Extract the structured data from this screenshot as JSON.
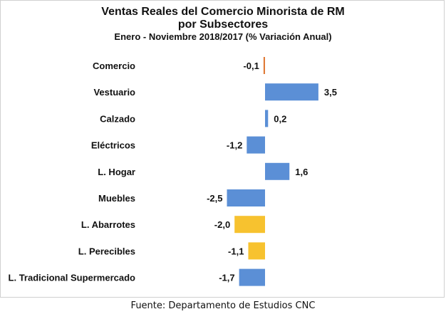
{
  "chart_data": {
    "type": "bar",
    "orientation": "horizontal",
    "title": "Ventas Reales del Comercio Minorista de RM",
    "title_line2": "por Subsectores",
    "subtitle": "Enero - Noviembre 2018/2017 (% Variación Anual)",
    "categories": [
      "Comercio",
      "Vestuario",
      "Calzado",
      "Eléctricos",
      "L. Hogar",
      "Muebles",
      "L. Abarrotes",
      "L. Perecibles",
      "L. Tradicional Supermercado"
    ],
    "values": [
      -0.1,
      3.5,
      0.2,
      -1.2,
      1.6,
      -2.5,
      -2.0,
      -1.1,
      -1.7
    ],
    "value_labels": [
      "-0,1",
      "3,5",
      "0,2",
      "-1,2",
      "1,6",
      "-2,5",
      "-2,0",
      "-1,1",
      "-1,7"
    ],
    "bar_colors": [
      "#e07b39",
      "#5b8fd6",
      "#5b8fd6",
      "#5b8fd6",
      "#5b8fd6",
      "#5b8fd6",
      "#f7c22f",
      "#f7c22f",
      "#5b8fd6"
    ],
    "xlim": [
      -2.5,
      3.5
    ],
    "grid": false,
    "legend": "none"
  },
  "source": "Fuente: Departamento de Estudios CNC"
}
